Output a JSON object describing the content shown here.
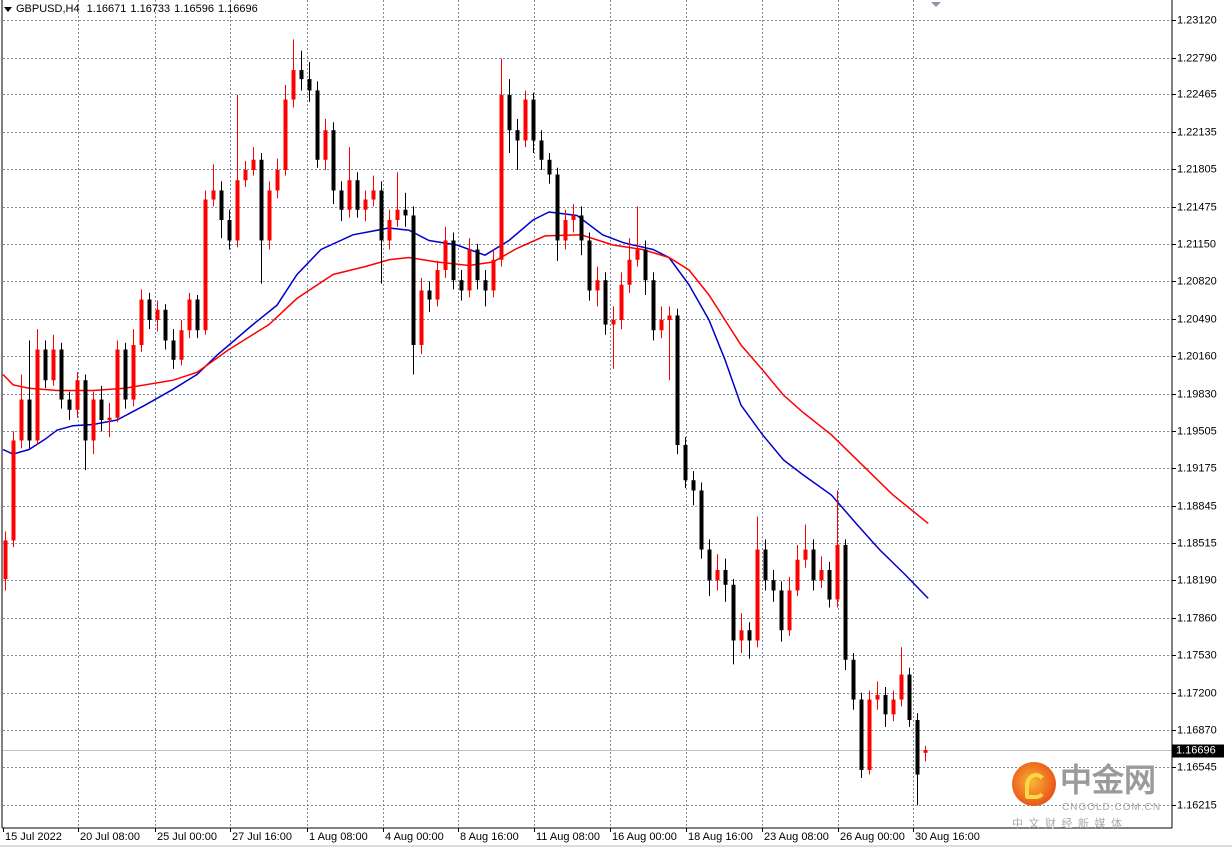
{
  "header": {
    "symbol": "GBPUSD,H4",
    "open": "1.16671",
    "high": "1.16733",
    "low": "1.16596",
    "close": "1.16696"
  },
  "watermark": {
    "name": "中金网",
    "url": "CNGOLD.COM.CN",
    "tagline": "中 文 财 经 新 媒 体"
  },
  "chart_data": {
    "type": "candlestick",
    "title": "",
    "timeframe": "H4",
    "colors": {
      "bull": "#ff0000",
      "bear": "#000000",
      "ma_fast": "#0000cc",
      "ma_slow": "#ff0000",
      "grid": "#7b8a9a"
    },
    "grid": true,
    "ylim": [
      1.1605,
      1.2325
    ],
    "y_ticks": [
      "1.23120",
      "1.22790",
      "1.22465",
      "1.22135",
      "1.21805",
      "1.21475",
      "1.21150",
      "1.20820",
      "1.20490",
      "1.20160",
      "1.19830",
      "1.19505",
      "1.19175",
      "1.18845",
      "1.18515",
      "1.18190",
      "1.17860",
      "1.17530",
      "1.17200",
      "1.16870",
      "1.16545",
      "1.16215"
    ],
    "x_ticks": [
      "15 Jul 2022",
      "20 Jul 08:00",
      "25 Jul 00:00",
      "27 Jul 16:00",
      "1 Aug 08:00",
      "4 Aug 00:00",
      "8 Aug 16:00",
      "11 Aug 08:00",
      "16 Aug 00:00",
      "18 Aug 16:00",
      "23 Aug 08:00",
      "26 Aug 00:00",
      "30 Aug 16:00"
    ],
    "current_price": "1.16696",
    "open": [
      1.182,
      1.1854,
      1.1942,
      1.1978,
      1.1942,
      1.2022,
      1.1995,
      1.2022,
      1.1978,
      1.1969,
      1.1995,
      1.1942,
      1.1978,
      1.196,
      1.1962,
      1.2022,
      1.1978,
      1.2026,
      1.2066,
      1.2048,
      1.2057,
      1.203,
      1.2013,
      1.2039,
      1.2066,
      1.2039,
      1.2154,
      1.2162,
      1.2136,
      1.2118,
      1.2171,
      1.218,
      1.2189,
      1.2118,
      1.2162,
      1.218,
      1.2242,
      1.2268,
      1.226,
      1.225,
      1.2189,
      1.2215,
      1.2162,
      1.2145,
      1.2171,
      1.2145,
      1.2154,
      1.2162,
      1.2118,
      1.2136,
      1.2145,
      1.214,
      1.2026,
      1.2074,
      1.2066,
      1.2092,
      1.2118,
      1.2083,
      1.2074,
      1.211,
      1.2083,
      1.2074,
      1.2101,
      1.2246,
      1.2215,
      1.2206,
      1.2242,
      1.2206,
      1.2189,
      1.2176,
      1.2118,
      1.2136,
      1.214,
      1.2118,
      1.2074,
      1.2083,
      1.2044,
      1.2048,
      1.2079,
      1.2101,
      1.211,
      1.2083,
      1.2039,
      1.2048,
      1.2052,
      1.1938,
      1.1907,
      1.1898,
      1.1846,
      1.1819,
      1.1828,
      1.1815,
      1.1766,
      1.1775,
      1.1766,
      1.1846,
      1.1819,
      1.181,
      1.1775,
      1.181,
      1.1837,
      1.1846,
      1.1819,
      1.1828,
      1.1802,
      1.185,
      1.1749,
      1.1714,
      1.1652,
      1.1714,
      1.1718,
      1.1701,
      1.1714,
      1.1736,
      1.1696,
      1.16671
    ],
    "high": [
      1.1862,
      1.195,
      1.2,
      1.203,
      1.204,
      1.203,
      1.2035,
      1.2028,
      1.1985,
      1.2002,
      1.2,
      1.1985,
      1.199,
      1.1975,
      1.203,
      1.2028,
      1.204,
      1.2075,
      1.2072,
      1.2065,
      1.2062,
      1.204,
      1.2048,
      1.2072,
      1.207,
      1.2162,
      1.2185,
      1.217,
      1.2145,
      1.2246,
      1.2188,
      1.22,
      1.2195,
      1.217,
      1.219,
      1.2255,
      1.2295,
      1.2285,
      1.2275,
      1.2258,
      1.2225,
      1.2222,
      1.217,
      1.22,
      1.2178,
      1.2162,
      1.2175,
      1.217,
      1.2145,
      1.2178,
      1.216,
      1.2148,
      1.2085,
      1.2082,
      1.21,
      1.213,
      1.2125,
      1.2092,
      1.212,
      1.2115,
      1.2092,
      1.211,
      1.2278,
      1.226,
      1.2225,
      1.225,
      1.2248,
      1.2215,
      1.2195,
      1.2182,
      1.2145,
      1.215,
      1.2148,
      1.2125,
      1.2095,
      1.209,
      1.206,
      1.209,
      1.212,
      1.2148,
      1.2118,
      1.209,
      1.206,
      1.206,
      1.2058,
      1.1945,
      1.1915,
      1.1905,
      1.1855,
      1.1842,
      1.1838,
      1.182,
      1.179,
      1.1782,
      1.1875,
      1.1855,
      1.1828,
      1.1818,
      1.1822,
      1.185,
      1.1868,
      1.1855,
      1.184,
      1.1835,
      1.1898,
      1.1855,
      1.1755,
      1.172,
      1.1722,
      1.173,
      1.1725,
      1.1722,
      1.176,
      1.1742,
      1.1702,
      1.16733
    ],
    "low": [
      1.181,
      1.1848,
      1.1935,
      1.1935,
      1.1938,
      1.1988,
      1.199,
      1.197,
      1.196,
      1.1962,
      1.1916,
      1.193,
      1.195,
      1.1945,
      1.1958,
      1.197,
      1.1972,
      1.202,
      1.204,
      1.2038,
      1.2022,
      1.2005,
      1.2008,
      1.2032,
      1.2032,
      1.2035,
      1.2148,
      1.212,
      1.211,
      1.2112,
      1.2165,
      1.2175,
      1.208,
      1.211,
      1.2155,
      1.2175,
      1.2235,
      1.225,
      1.224,
      1.2182,
      1.218,
      1.215,
      1.2135,
      1.2138,
      1.2138,
      1.2135,
      1.2148,
      1.208,
      1.211,
      1.213,
      1.213,
      1.2,
      1.2018,
      1.2055,
      1.206,
      1.2085,
      1.2075,
      1.2065,
      1.2068,
      1.2075,
      1.206,
      1.2068,
      1.2095,
      1.2195,
      1.218,
      1.22,
      1.2195,
      1.218,
      1.2168,
      1.21,
      1.211,
      1.2125,
      1.2105,
      1.2065,
      1.206,
      1.2035,
      1.2005,
      1.204,
      1.2072,
      1.2095,
      1.207,
      1.203,
      1.2032,
      1.1995,
      1.193,
      1.19,
      1.1885,
      1.1838,
      1.1805,
      1.181,
      1.18,
      1.1745,
      1.1755,
      1.175,
      1.176,
      1.181,
      1.18,
      1.1765,
      1.177,
      1.1805,
      1.183,
      1.181,
      1.1812,
      1.1795,
      1.1795,
      1.174,
      1.1705,
      1.1645,
      1.1648,
      1.1705,
      1.169,
      1.1695,
      1.1708,
      1.169,
      1.1621,
      1.16596
    ],
    "close": [
      1.1854,
      1.1942,
      1.1978,
      1.1942,
      1.2022,
      1.1995,
      1.2022,
      1.1978,
      1.1969,
      1.1995,
      1.1942,
      1.1978,
      1.196,
      1.1962,
      1.2022,
      1.1978,
      1.2026,
      1.2066,
      1.2048,
      1.2057,
      1.203,
      1.2013,
      1.2039,
      1.2066,
      1.2039,
      1.2154,
      1.2162,
      1.2136,
      1.2118,
      1.2171,
      1.218,
      1.2189,
      1.2118,
      1.2162,
      1.218,
      1.2242,
      1.2268,
      1.226,
      1.225,
      1.2189,
      1.2215,
      1.2162,
      1.2145,
      1.2171,
      1.2145,
      1.2154,
      1.2162,
      1.2118,
      1.2136,
      1.2145,
      1.214,
      1.2026,
      1.2074,
      1.2066,
      1.2092,
      1.2118,
      1.2083,
      1.2074,
      1.211,
      1.2083,
      1.2074,
      1.2101,
      1.2246,
      1.2215,
      1.2206,
      1.2242,
      1.2206,
      1.2189,
      1.2176,
      1.2118,
      1.2136,
      1.214,
      1.2118,
      1.2074,
      1.2083,
      1.2044,
      1.2048,
      1.2079,
      1.2101,
      1.211,
      1.2083,
      1.2039,
      1.2048,
      1.2052,
      1.1938,
      1.1907,
      1.1898,
      1.1846,
      1.1819,
      1.1828,
      1.1815,
      1.1766,
      1.1775,
      1.1766,
      1.1846,
      1.1819,
      1.181,
      1.1775,
      1.181,
      1.1837,
      1.1846,
      1.1819,
      1.1828,
      1.1802,
      1.185,
      1.1749,
      1.1714,
      1.1652,
      1.1714,
      1.1718,
      1.1701,
      1.1714,
      1.1736,
      1.1696,
      1.1648,
      1.16696
    ],
    "ma_fast": [
      [
        0,
        1.1934
      ],
      [
        1,
        1.193
      ],
      [
        3,
        1.1934
      ],
      [
        5,
        1.1943
      ],
      [
        6.5,
        1.1951
      ],
      [
        8.5,
        1.1955
      ],
      [
        11,
        1.1956
      ],
      [
        14,
        1.196
      ],
      [
        17.5,
        1.1973
      ],
      [
        21,
        1.1987
      ],
      [
        24,
        1.2
      ],
      [
        26.5,
        1.2017
      ],
      [
        31,
        1.2044
      ],
      [
        34,
        1.2061
      ],
      [
        36.5,
        1.2088
      ],
      [
        39.5,
        1.211
      ],
      [
        43.5,
        1.2123
      ],
      [
        48,
        1.2129
      ],
      [
        50.5,
        1.2127
      ],
      [
        53,
        1.2118
      ],
      [
        56.5,
        1.2114
      ],
      [
        60,
        1.2105
      ],
      [
        63,
        1.2118
      ],
      [
        66,
        1.2136
      ],
      [
        68,
        1.2143
      ],
      [
        71.5,
        1.214
      ],
      [
        74.7,
        1.2123
      ],
      [
        77.3,
        1.2116
      ],
      [
        81,
        1.211
      ],
      [
        83,
        1.2103
      ],
      [
        85.5,
        1.2079
      ],
      [
        88,
        1.2048
      ],
      [
        90,
        1.2013
      ],
      [
        92,
        1.1973
      ],
      [
        94.7,
        1.1947
      ],
      [
        97.3,
        1.1925
      ],
      [
        99.7,
        1.1912
      ],
      [
        103.3,
        1.1894
      ],
      [
        106.5,
        1.1868
      ],
      [
        109.3,
        1.1846
      ],
      [
        112.5,
        1.1824
      ],
      [
        115.4,
        1.1803
      ]
    ],
    "ma_slow": [
      [
        0,
        1.2
      ],
      [
        1,
        1.1991
      ],
      [
        3,
        1.1988
      ],
      [
        6.5,
        1.1986
      ],
      [
        11,
        1.1986
      ],
      [
        15,
        1.1988
      ],
      [
        21,
        1.1995
      ],
      [
        24,
        1.2002
      ],
      [
        28,
        1.2022
      ],
      [
        33,
        1.2044
      ],
      [
        36.5,
        1.2067
      ],
      [
        41,
        1.2088
      ],
      [
        45,
        1.2095
      ],
      [
        48,
        1.2101
      ],
      [
        50.5,
        1.2103
      ],
      [
        54,
        1.2099
      ],
      [
        58,
        1.2096
      ],
      [
        61,
        1.2099
      ],
      [
        64,
        1.2111
      ],
      [
        67.5,
        1.2122
      ],
      [
        72,
        1.2123
      ],
      [
        76,
        1.2114
      ],
      [
        79.7,
        1.211
      ],
      [
        83,
        1.2103
      ],
      [
        85.5,
        1.2092
      ],
      [
        88,
        1.207
      ],
      [
        90,
        1.2048
      ],
      [
        92,
        1.2026
      ],
      [
        94.7,
        1.2004
      ],
      [
        97.3,
        1.1982
      ],
      [
        99.7,
        1.1967
      ],
      [
        103.3,
        1.1947
      ],
      [
        106.5,
        1.1925
      ],
      [
        111,
        1.1894
      ],
      [
        115.4,
        1.1869
      ]
    ]
  }
}
